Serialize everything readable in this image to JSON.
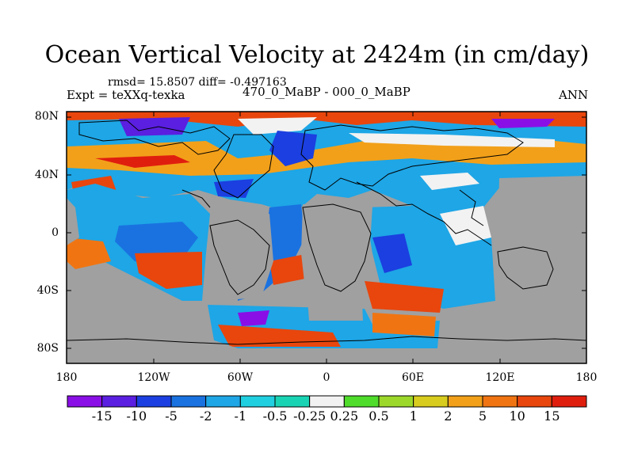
{
  "title": "Ocean Vertical Velocity at 2424m (in cm/day)",
  "stats": "rmsd= 15.8507 diff= -0.497163",
  "experiment": "Expt = teXXq-texka",
  "difference": "470_0_MaBP - 000_0_MaBP",
  "season": "ANN",
  "chart_data": {
    "type": "heatmap",
    "title": "Ocean Vertical Velocity at 2424m (in cm/day)",
    "y_ticks": [
      "80N",
      "40N",
      "0",
      "40S",
      "80S"
    ],
    "x_ticks": [
      "180",
      "120W",
      "60W",
      "0",
      "60E",
      "120E",
      "180"
    ],
    "colorbar": {
      "labels": [
        "-15",
        "-10",
        "-5",
        "-2",
        "-1",
        "-0.5",
        "-0.25",
        "0.25",
        "0.5",
        "1",
        "2",
        "5",
        "10",
        "15"
      ],
      "colors": [
        "#8a0fe6",
        "#5a1fe0",
        "#1b3fe0",
        "#1a72e0",
        "#1ea6e6",
        "#20cfe0",
        "#19d4b4",
        "#f2f2f2",
        "#4fdc2a",
        "#9cd82a",
        "#d8cc1e",
        "#f2a01a",
        "#f07512",
        "#e8460d",
        "#e01e0e"
      ]
    },
    "land_color": "#a0a0a0",
    "xlim": [
      -180,
      180
    ],
    "ylim": [
      -90,
      90
    ]
  }
}
